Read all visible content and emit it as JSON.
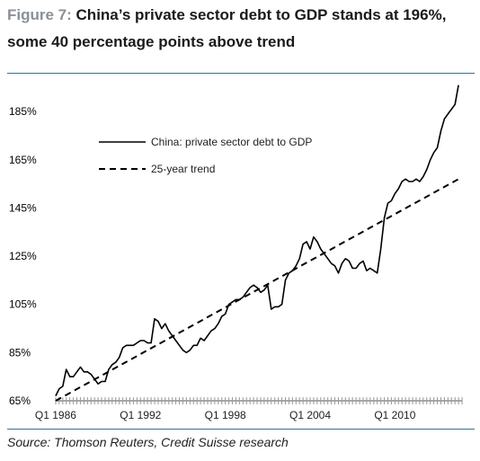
{
  "title": {
    "figure_label": "Figure 7:",
    "text": "China’s private sector debt to GDP stands at 196%, some 40 percentage points above trend"
  },
  "source": "Source: Thomson Reuters, Credit Suisse research",
  "colors": {
    "rule": "#3a6f8f",
    "series": "#000000",
    "figure_label": "#8a9096"
  },
  "chart_data": {
    "type": "line",
    "title": "China’s private sector debt to GDP stands at 196%, some 40 percentage points above trend",
    "xlabel": "",
    "ylabel": "",
    "ylim": [
      65,
      200
    ],
    "y_ticks": [
      "185%",
      "165%",
      "145%",
      "125%",
      "105%",
      "85%",
      "65%"
    ],
    "y_tick_values": [
      185,
      165,
      145,
      125,
      105,
      85,
      65
    ],
    "x_ticks": [
      "Q1 1986",
      "Q1 1992",
      "Q1 1998",
      "Q1 2004",
      "Q1 2010"
    ],
    "x_tick_values": [
      1986,
      1992,
      1998,
      2004,
      2010
    ],
    "xlim": [
      1985.75,
      2015.0
    ],
    "grid": false,
    "legend_position": "top-left",
    "series": [
      {
        "name": "China: private sector debt to GDP",
        "style": "solid",
        "points": [
          [
            1986.0,
            67
          ],
          [
            1986.25,
            70
          ],
          [
            1986.5,
            71
          ],
          [
            1986.75,
            78
          ],
          [
            1987.0,
            75
          ],
          [
            1987.25,
            75
          ],
          [
            1987.5,
            77
          ],
          [
            1987.75,
            79
          ],
          [
            1988.0,
            77
          ],
          [
            1988.25,
            77
          ],
          [
            1988.5,
            76
          ],
          [
            1988.75,
            74
          ],
          [
            1989.0,
            72
          ],
          [
            1989.25,
            73
          ],
          [
            1989.5,
            73
          ],
          [
            1989.75,
            78
          ],
          [
            1990.0,
            80
          ],
          [
            1990.25,
            81
          ],
          [
            1990.5,
            83
          ],
          [
            1990.75,
            87
          ],
          [
            1991.0,
            88
          ],
          [
            1991.25,
            88
          ],
          [
            1991.5,
            88
          ],
          [
            1991.75,
            89
          ],
          [
            1992.0,
            90
          ],
          [
            1992.25,
            90
          ],
          [
            1992.5,
            89
          ],
          [
            1992.75,
            89
          ],
          [
            1993.0,
            99
          ],
          [
            1993.25,
            98
          ],
          [
            1993.5,
            95
          ],
          [
            1993.75,
            97
          ],
          [
            1994.0,
            94
          ],
          [
            1994.25,
            92
          ],
          [
            1994.5,
            90
          ],
          [
            1994.75,
            88
          ],
          [
            1995.0,
            86
          ],
          [
            1995.25,
            85
          ],
          [
            1995.5,
            86
          ],
          [
            1995.75,
            88
          ],
          [
            1996.0,
            88
          ],
          [
            1996.25,
            91
          ],
          [
            1996.5,
            90
          ],
          [
            1996.75,
            92
          ],
          [
            1997.0,
            94
          ],
          [
            1997.25,
            95
          ],
          [
            1997.5,
            97
          ],
          [
            1997.75,
            100
          ],
          [
            1998.0,
            101
          ],
          [
            1998.25,
            105
          ],
          [
            1998.5,
            106
          ],
          [
            1998.75,
            107
          ],
          [
            1999.0,
            107
          ],
          [
            1999.25,
            108
          ],
          [
            1999.5,
            110
          ],
          [
            1999.75,
            112
          ],
          [
            2000.0,
            113
          ],
          [
            2000.25,
            112
          ],
          [
            2000.5,
            110
          ],
          [
            2000.75,
            111
          ],
          [
            2001.0,
            113
          ],
          [
            2001.25,
            103
          ],
          [
            2001.5,
            104
          ],
          [
            2001.75,
            104
          ],
          [
            2002.0,
            105
          ],
          [
            2002.25,
            115
          ],
          [
            2002.5,
            118
          ],
          [
            2002.75,
            119
          ],
          [
            2003.0,
            121
          ],
          [
            2003.25,
            124
          ],
          [
            2003.5,
            130
          ],
          [
            2003.75,
            131
          ],
          [
            2004.0,
            128
          ],
          [
            2004.25,
            133
          ],
          [
            2004.5,
            131
          ],
          [
            2004.75,
            128
          ],
          [
            2005.0,
            126
          ],
          [
            2005.25,
            124
          ],
          [
            2005.5,
            122
          ],
          [
            2005.75,
            121
          ],
          [
            2006.0,
            118
          ],
          [
            2006.25,
            122
          ],
          [
            2006.5,
            124
          ],
          [
            2006.75,
            123
          ],
          [
            2007.0,
            120
          ],
          [
            2007.25,
            120
          ],
          [
            2007.5,
            122
          ],
          [
            2007.75,
            123
          ],
          [
            2008.0,
            119
          ],
          [
            2008.25,
            120
          ],
          [
            2008.5,
            119
          ],
          [
            2008.75,
            118
          ],
          [
            2009.0,
            128
          ],
          [
            2009.25,
            141
          ],
          [
            2009.5,
            147
          ],
          [
            2009.75,
            148
          ],
          [
            2010.0,
            151
          ],
          [
            2010.25,
            153
          ],
          [
            2010.5,
            156
          ],
          [
            2010.75,
            157
          ],
          [
            2011.0,
            156
          ],
          [
            2011.25,
            156
          ],
          [
            2011.5,
            157
          ],
          [
            2011.75,
            156
          ],
          [
            2012.0,
            158
          ],
          [
            2012.25,
            161
          ],
          [
            2012.5,
            165
          ],
          [
            2012.75,
            168
          ],
          [
            2013.0,
            170
          ],
          [
            2013.25,
            177
          ],
          [
            2013.5,
            182
          ],
          [
            2013.75,
            184
          ],
          [
            2014.0,
            186
          ],
          [
            2014.25,
            188
          ],
          [
            2014.5,
            196
          ]
        ]
      },
      {
        "name": "25-year trend",
        "style": "dashed",
        "points": [
          [
            1986.0,
            65
          ],
          [
            2014.5,
            157
          ]
        ]
      }
    ]
  }
}
